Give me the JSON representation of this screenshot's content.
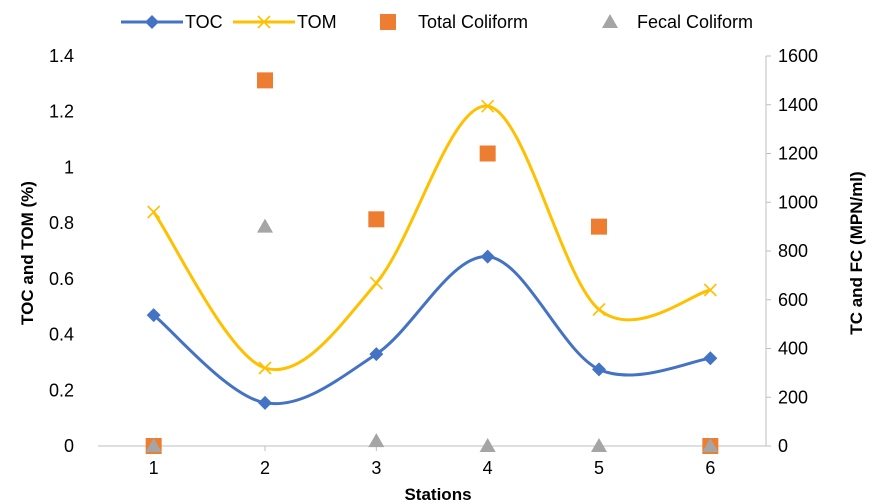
{
  "chart_data": {
    "type": "line",
    "x": [
      1,
      2,
      3,
      4,
      5,
      6
    ],
    "xlabel": "Stations",
    "ylabel_left": "TOC and TOM (%)",
    "ylabel_right": "TC and FC (MPN/ml)",
    "ylim_left": [
      0,
      1.4
    ],
    "yticks_left": [
      "0",
      "0.2",
      "0.4",
      "0.6",
      "0.8",
      "1",
      "1.2",
      "1.4"
    ],
    "ylim_right": [
      0,
      1600
    ],
    "yticks_right": [
      "0",
      "200",
      "400",
      "600",
      "800",
      "1000",
      "1200",
      "1400",
      "1600"
    ],
    "xticks": [
      "1",
      "2",
      "3",
      "4",
      "5",
      "6"
    ],
    "grid": false,
    "legend_position": "top",
    "series": [
      {
        "name": "TOC",
        "axis": "left",
        "style": "smooth-line-diamond",
        "color": "#4472C4",
        "values": [
          0.47,
          0.155,
          0.33,
          0.68,
          0.275,
          0.315
        ]
      },
      {
        "name": "TOM",
        "axis": "left",
        "style": "smooth-line-x",
        "color": "#FFC000",
        "values": [
          0.84,
          0.28,
          0.585,
          1.22,
          0.49,
          0.56
        ]
      },
      {
        "name": "Total Coliform",
        "axis": "right",
        "style": "square-marker",
        "color": "#ED7D31",
        "values": [
          0,
          1500,
          930,
          1200,
          900,
          0
        ]
      },
      {
        "name": "Fecal Coliform",
        "axis": "right",
        "style": "triangle-marker",
        "color": "#A5A5A5",
        "values": [
          0,
          900,
          20,
          0,
          0,
          0
        ]
      }
    ]
  }
}
